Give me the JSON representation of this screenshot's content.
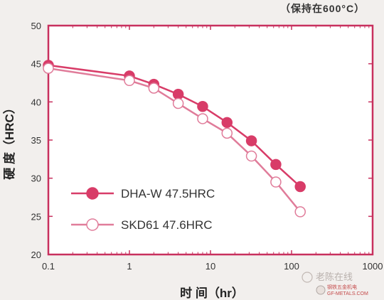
{
  "note": "（保持在600°C）",
  "watermark": {
    "handle": "老陈在线",
    "site_cn": "钢铁五金机电",
    "site_en": "GF-METALS.COM"
  },
  "colors": {
    "frame": "#c8305e",
    "dha": "#d83c68",
    "skd": "#e07c9a",
    "background": "#f2efed",
    "plot_background": "#ffffff"
  },
  "chart_data": {
    "type": "line",
    "xlabel": "时 间（hr）",
    "ylabel": "硬 度（HRC）",
    "x_scale": "log",
    "xlim": [
      0.1,
      1000
    ],
    "ylim": [
      20,
      50
    ],
    "x_ticks": [
      0.1,
      1,
      10,
      100,
      1000
    ],
    "x_tick_labels": [
      "0.1",
      "1",
      "10",
      "100",
      "1000"
    ],
    "y_ticks": [
      20,
      25,
      30,
      35,
      40,
      45,
      50
    ],
    "y_tick_labels": [
      "20",
      "25",
      "30",
      "35",
      "40",
      "45",
      "50"
    ],
    "grid": false,
    "legend_position": "lower-left",
    "series": [
      {
        "name": "DHA-W 47.5HRC",
        "marker": "filled-circle",
        "x": [
          0.1,
          1,
          2,
          4,
          8,
          16,
          32,
          64,
          128
        ],
        "y": [
          44.8,
          43.4,
          42.3,
          41.0,
          39.4,
          37.3,
          34.9,
          31.8,
          28.9
        ]
      },
      {
        "name": "SKD61  47.6HRC",
        "marker": "open-circle",
        "x": [
          0.1,
          1,
          2,
          4,
          8,
          16,
          32,
          64,
          128
        ],
        "y": [
          44.4,
          42.8,
          41.8,
          39.8,
          37.8,
          35.9,
          32.9,
          29.5,
          25.6
        ]
      }
    ]
  }
}
